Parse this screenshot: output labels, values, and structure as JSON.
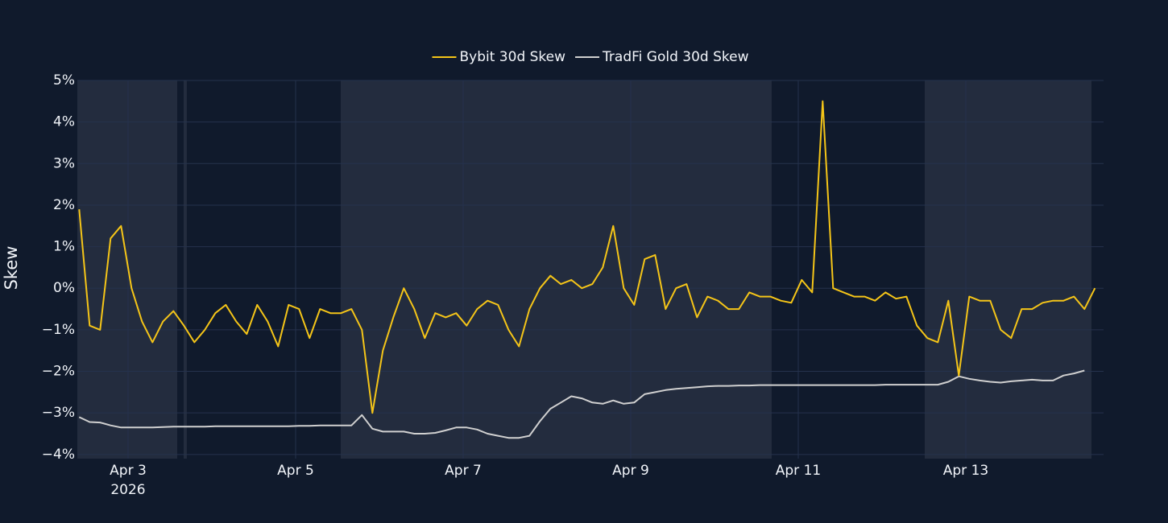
{
  "chart_data": {
    "type": "line",
    "ylabel": "Skew",
    "ylim": [
      -4.1,
      5
    ],
    "yticks": [
      {
        "value": 5,
        "label": "5%"
      },
      {
        "value": 4,
        "label": "4%"
      },
      {
        "value": 3,
        "label": "3%"
      },
      {
        "value": 2,
        "label": "2%"
      },
      {
        "value": 1,
        "label": "1%"
      },
      {
        "value": 0,
        "label": "0%"
      },
      {
        "value": -1,
        "label": "−1%"
      },
      {
        "value": -2,
        "label": "−2%"
      },
      {
        "value": -3,
        "label": "−3%"
      },
      {
        "value": -4,
        "label": "−4%"
      }
    ],
    "xlim": [
      "2026-04-02 09:28",
      "2026-04-14 15:28"
    ],
    "xticks": [
      {
        "value": "2026-04-03 00:00",
        "label": "Apr 3"
      },
      {
        "value": "2026-04-05 00:00",
        "label": "Apr 5"
      },
      {
        "value": "2026-04-07 00:00",
        "label": "Apr 7"
      },
      {
        "value": "2026-04-09 00:00",
        "label": "Apr 9"
      },
      {
        "value": "2026-04-11 00:00",
        "label": "Apr 11"
      },
      {
        "value": "2026-04-13 00:00",
        "label": "Apr 13"
      }
    ],
    "x_year_label": "2026",
    "grid": true,
    "legend": "top",
    "shaded_ranges": [
      [
        "2026-04-02 09:28",
        "2026-04-03 14:05"
      ],
      [
        "2026-04-03 15:55",
        "2026-04-03 16:50"
      ],
      [
        "2026-04-05 12:55",
        "2026-04-10 16:23"
      ],
      [
        "2026-04-12 12:14",
        "2026-04-14 12:00"
      ]
    ],
    "x": [
      "2026-04-02 10:00",
      "2026-04-02 13:00",
      "2026-04-02 16:00",
      "2026-04-02 19:00",
      "2026-04-02 22:00",
      "2026-04-03 01:00",
      "2026-04-03 04:00",
      "2026-04-03 07:00",
      "2026-04-03 10:00",
      "2026-04-03 13:00",
      "2026-04-03 16:00",
      "2026-04-03 19:00",
      "2026-04-03 22:00",
      "2026-04-04 01:00",
      "2026-04-04 04:00",
      "2026-04-04 07:00",
      "2026-04-04 10:00",
      "2026-04-04 13:00",
      "2026-04-04 16:00",
      "2026-04-04 19:00",
      "2026-04-04 22:00",
      "2026-04-05 01:00",
      "2026-04-05 04:00",
      "2026-04-05 07:00",
      "2026-04-05 10:00",
      "2026-04-05 13:00",
      "2026-04-05 16:00",
      "2026-04-05 19:00",
      "2026-04-05 22:00",
      "2026-04-06 01:00",
      "2026-04-06 04:00",
      "2026-04-06 07:00",
      "2026-04-06 10:00",
      "2026-04-06 13:00",
      "2026-04-06 16:00",
      "2026-04-06 19:00",
      "2026-04-06 22:00",
      "2026-04-07 01:00",
      "2026-04-07 04:00",
      "2026-04-07 07:00",
      "2026-04-07 10:00",
      "2026-04-07 13:00",
      "2026-04-07 16:00",
      "2026-04-07 19:00",
      "2026-04-07 22:00",
      "2026-04-08 01:00",
      "2026-04-08 04:00",
      "2026-04-08 07:00",
      "2026-04-08 10:00",
      "2026-04-08 13:00",
      "2026-04-08 16:00",
      "2026-04-08 19:00",
      "2026-04-08 22:00",
      "2026-04-09 01:00",
      "2026-04-09 04:00",
      "2026-04-09 07:00",
      "2026-04-09 10:00",
      "2026-04-09 13:00",
      "2026-04-09 16:00",
      "2026-04-09 19:00",
      "2026-04-09 22:00",
      "2026-04-10 01:00",
      "2026-04-10 04:00",
      "2026-04-10 07:00",
      "2026-04-10 10:00",
      "2026-04-10 13:00",
      "2026-04-10 16:00",
      "2026-04-10 19:00",
      "2026-04-10 22:00",
      "2026-04-11 01:00",
      "2026-04-11 04:00",
      "2026-04-11 07:00",
      "2026-04-11 10:00",
      "2026-04-11 13:00",
      "2026-04-11 16:00",
      "2026-04-11 19:00",
      "2026-04-11 22:00",
      "2026-04-12 01:00",
      "2026-04-12 04:00",
      "2026-04-12 07:00",
      "2026-04-12 10:00",
      "2026-04-12 13:00",
      "2026-04-12 16:00",
      "2026-04-12 19:00",
      "2026-04-12 22:00",
      "2026-04-13 01:00",
      "2026-04-13 04:00",
      "2026-04-13 07:00",
      "2026-04-13 10:00",
      "2026-04-13 13:00",
      "2026-04-13 16:00",
      "2026-04-13 19:00",
      "2026-04-13 22:00",
      "2026-04-14 01:00",
      "2026-04-14 04:00",
      "2026-04-14 07:00",
      "2026-04-14 10:00",
      "2026-04-14 13:00"
    ],
    "series": [
      {
        "name": "Bybit 30d Skew",
        "color": "#f5c518",
        "values": [
          1.9,
          -0.9,
          -1.0,
          1.2,
          1.5,
          0.0,
          -0.8,
          -1.3,
          -0.8,
          -0.55,
          -0.9,
          -1.3,
          -1.0,
          -0.6,
          -0.4,
          -0.8,
          -1.1,
          -0.4,
          -0.8,
          -1.4,
          -0.4,
          -0.5,
          -1.2,
          -0.5,
          -0.6,
          -0.6,
          -0.5,
          -1.0,
          -3.0,
          -1.5,
          -0.7,
          0.0,
          -0.5,
          -1.2,
          -0.6,
          -0.7,
          -0.6,
          -0.9,
          -0.5,
          -0.3,
          -0.4,
          -1.0,
          -1.4,
          -0.5,
          0.0,
          0.3,
          0.1,
          0.2,
          0.0,
          0.1,
          0.5,
          1.5,
          0.0,
          -0.4,
          0.7,
          0.8,
          -0.5,
          0.0,
          0.1,
          -0.7,
          -0.2,
          -0.3,
          -0.5,
          -0.5,
          -0.1,
          -0.2,
          -0.2,
          -0.3,
          -0.35,
          0.2,
          -0.1,
          4.5,
          0.0,
          -0.1,
          -0.2,
          -0.2,
          -0.3,
          -0.1,
          -0.25,
          -0.2,
          -0.9,
          -1.2,
          -1.3,
          -0.3,
          -2.1,
          -0.2,
          -0.3,
          -0.3,
          -1.0,
          -1.2,
          -0.5,
          -0.5,
          -0.35,
          -0.3,
          -0.3,
          -0.2,
          -0.5,
          0.0
        ]
      },
      {
        "name": "TradFi Gold 30d Skew",
        "color": "#d0d0d0",
        "values": [
          -3.1,
          -3.22,
          -3.23,
          -3.3,
          -3.35,
          -3.35,
          -3.35,
          -3.35,
          -3.34,
          -3.33,
          -3.33,
          -3.33,
          -3.33,
          -3.32,
          -3.32,
          -3.32,
          -3.32,
          -3.32,
          -3.32,
          -3.32,
          -3.32,
          -3.31,
          -3.31,
          -3.3,
          -3.3,
          -3.3,
          -3.3,
          -3.05,
          -3.38,
          -3.45,
          -3.45,
          -3.45,
          -3.5,
          -3.5,
          -3.48,
          -3.42,
          -3.35,
          -3.35,
          -3.4,
          -3.5,
          -3.55,
          -3.6,
          -3.6,
          -3.55,
          -3.2,
          -2.9,
          -2.75,
          -2.6,
          -2.65,
          -2.75,
          -2.78,
          -2.7,
          -2.78,
          -2.75,
          -2.55,
          -2.5,
          -2.45,
          -2.42,
          -2.4,
          -2.38,
          -2.36,
          -2.35,
          -2.35,
          -2.34,
          -2.34,
          -2.33,
          -2.33,
          -2.33,
          -2.33,
          -2.33,
          -2.33,
          -2.33,
          -2.33,
          -2.33,
          -2.33,
          -2.33,
          -2.33,
          -2.32,
          -2.32,
          -2.32,
          -2.32,
          -2.32,
          -2.32,
          -2.25,
          -2.12,
          -2.18,
          -2.22,
          -2.25,
          -2.27,
          -2.24,
          -2.22,
          -2.2,
          -2.22,
          -2.22,
          -2.1,
          -2.05,
          -1.98,
          null
        ]
      }
    ]
  }
}
